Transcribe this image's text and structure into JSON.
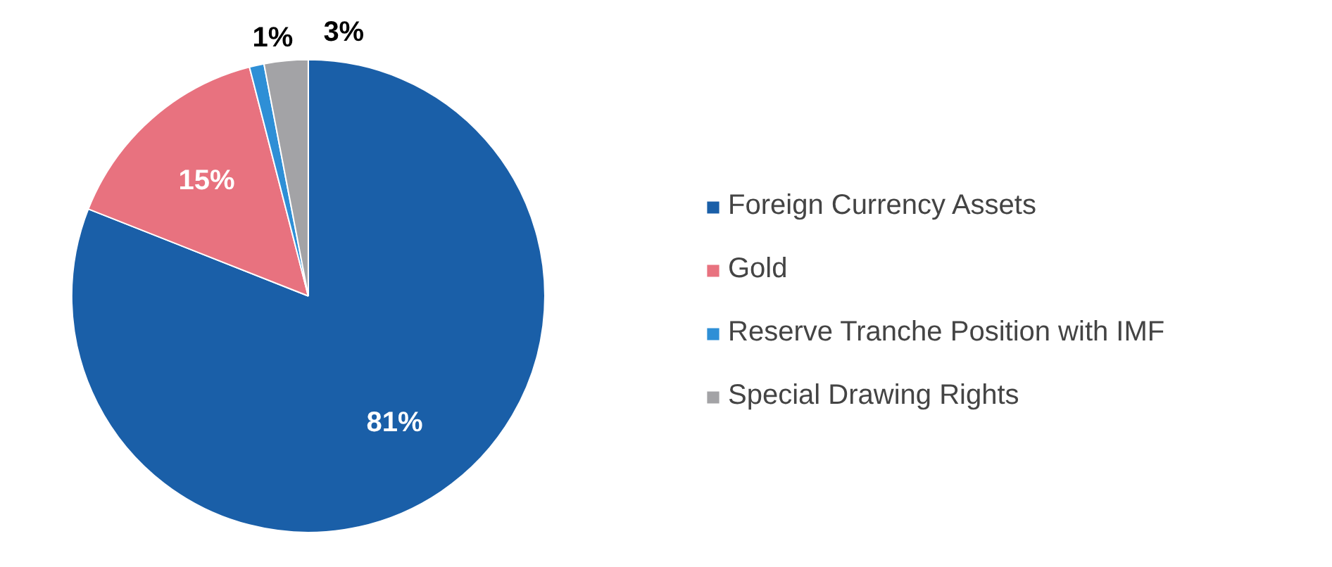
{
  "chart_data": {
    "type": "pie",
    "categories": [
      "Foreign Currency Assets",
      "Gold",
      "Reserve Tranche Position with IMF",
      "Special Drawing Rights"
    ],
    "values": [
      81,
      15,
      1,
      3
    ],
    "colors": [
      "#1a5fa8",
      "#e8727f",
      "#2e8fd6",
      "#a3a3a6"
    ],
    "value_labels": [
      "81%",
      "15%",
      "1%",
      "3%"
    ],
    "legend": "right"
  }
}
